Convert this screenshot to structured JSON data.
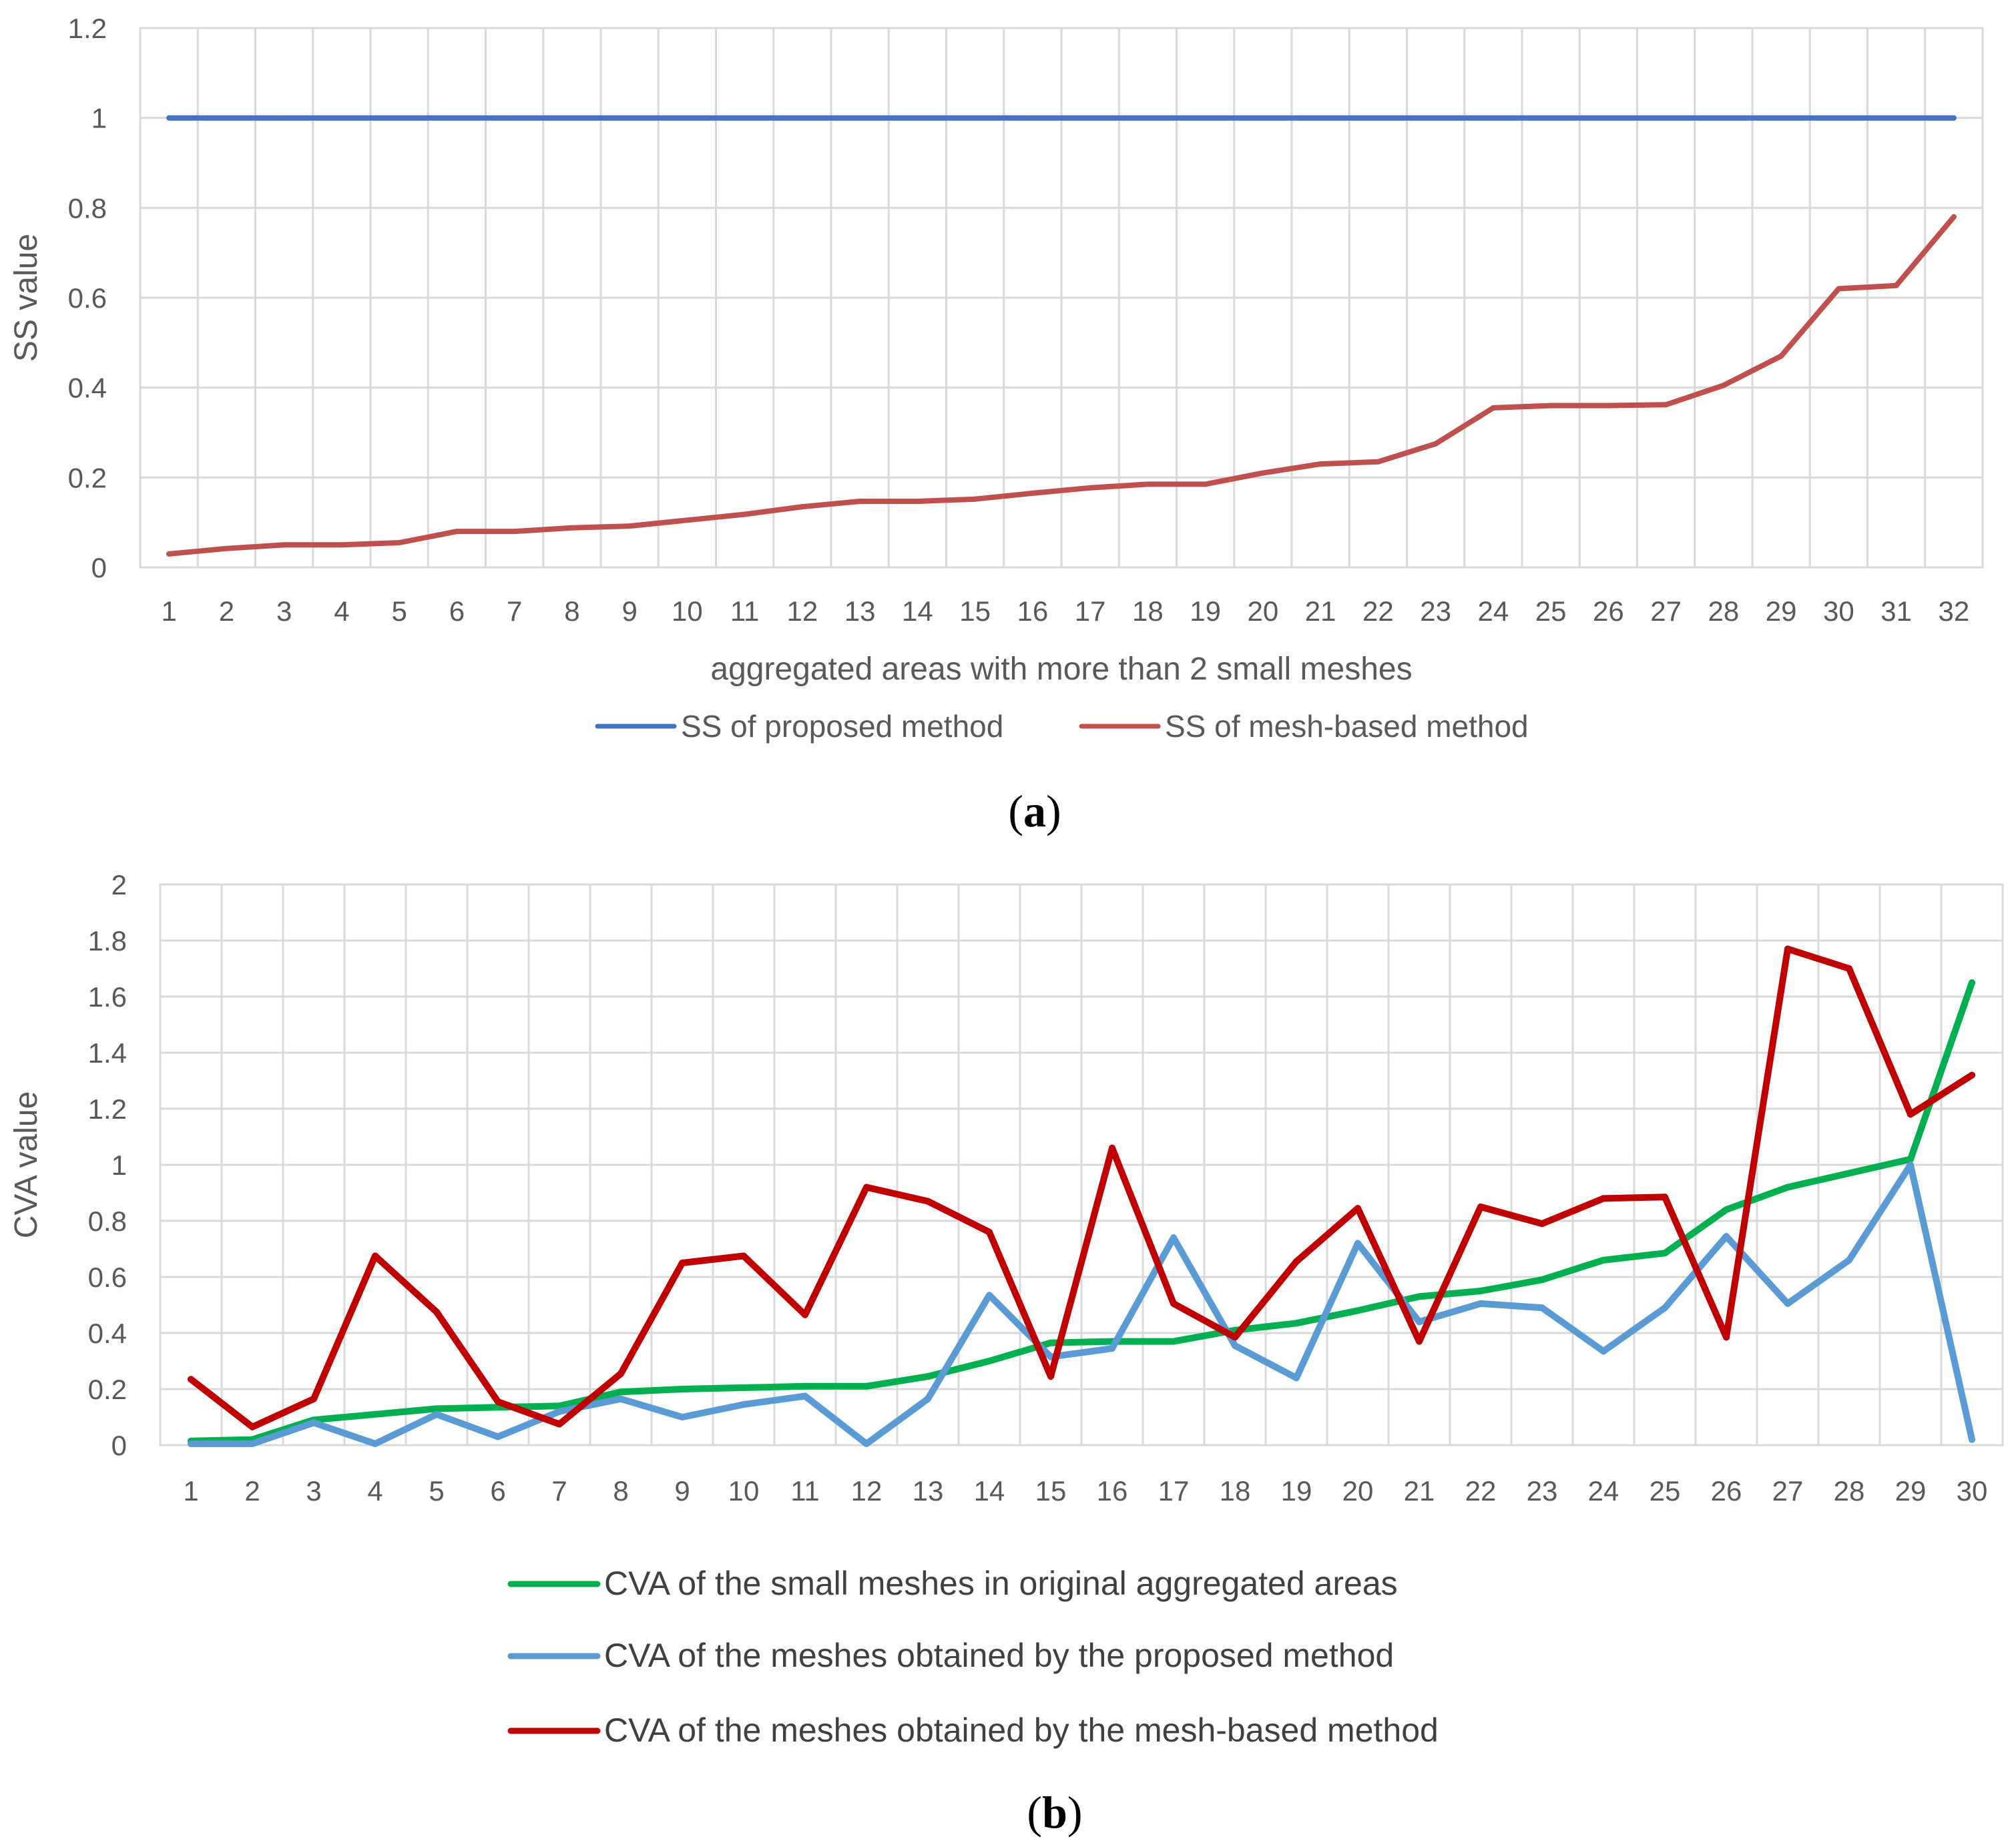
{
  "chart_data": [
    {
      "id": "a",
      "panel_label": "(a)",
      "panel_letter": "a",
      "type": "line",
      "xlabel": "aggregated areas with more than 2 small meshes",
      "ylabel": "SS value",
      "ylim": [
        0,
        1.2
      ],
      "y_ticks": [
        "0",
        "0.2",
        "0.4",
        "0.6",
        "0.8",
        "1",
        "1.2"
      ],
      "grid": true,
      "legend_position": "bottom",
      "x": [
        "1",
        "2",
        "3",
        "4",
        "5",
        "6",
        "7",
        "8",
        "9",
        "10",
        "11",
        "12",
        "13",
        "14",
        "15",
        "16",
        "17",
        "18",
        "19",
        "20",
        "21",
        "22",
        "23",
        "24",
        "25",
        "26",
        "27",
        "28",
        "29",
        "30",
        "31",
        "32"
      ],
      "series": [
        {
          "name": "SS of proposed method",
          "color": "#4472c4",
          "values": [
            1,
            1,
            1,
            1,
            1,
            1,
            1,
            1,
            1,
            1,
            1,
            1,
            1,
            1,
            1,
            1,
            1,
            1,
            1,
            1,
            1,
            1,
            1,
            1,
            1,
            1,
            1,
            1,
            1,
            1,
            1,
            1
          ]
        },
        {
          "name": "SS of mesh-based method",
          "color": "#c0504d",
          "values": [
            0.03,
            0.042,
            0.05,
            0.05,
            0.055,
            0.08,
            0.08,
            0.088,
            0.092,
            0.105,
            0.118,
            0.135,
            0.147,
            0.147,
            0.152,
            0.165,
            0.177,
            0.185,
            0.185,
            0.21,
            0.23,
            0.235,
            0.275,
            0.355,
            0.36,
            0.36,
            0.362,
            0.405,
            0.47,
            0.62,
            0.627,
            0.78
          ]
        }
      ]
    },
    {
      "id": "b",
      "panel_label": "(b)",
      "panel_letter": "b",
      "type": "line",
      "xlabel": "",
      "ylabel": "CVA value",
      "ylim": [
        0,
        2
      ],
      "y_ticks": [
        "0",
        "0.2",
        "0.4",
        "0.6",
        "0.8",
        "1",
        "1.2",
        "1.4",
        "1.6",
        "1.8",
        "2"
      ],
      "grid": true,
      "legend_position": "bottom",
      "x": [
        "1",
        "2",
        "3",
        "4",
        "5",
        "6",
        "7",
        "8",
        "9",
        "10",
        "11",
        "12",
        "13",
        "14",
        "15",
        "16",
        "17",
        "18",
        "19",
        "20",
        "21",
        "22",
        "23",
        "24",
        "25",
        "26",
        "27",
        "28",
        "29",
        "30"
      ],
      "series": [
        {
          "name": "CVA of the small meshes in original aggregated areas",
          "color": "#00b050",
          "values": [
            0.015,
            0.02,
            0.09,
            0.11,
            0.13,
            0.135,
            0.14,
            0.19,
            0.2,
            0.205,
            0.21,
            0.21,
            0.245,
            0.3,
            0.365,
            0.37,
            0.37,
            0.41,
            0.435,
            0.48,
            0.53,
            0.55,
            0.59,
            0.66,
            0.685,
            0.84,
            0.92,
            0.97,
            1.02,
            1.65
          ]
        },
        {
          "name": "CVA of the meshes obtained by the proposed method",
          "color": "#5b9bd5",
          "values": [
            0.005,
            0.005,
            0.08,
            0.005,
            0.11,
            0.03,
            0.12,
            0.165,
            0.1,
            0.145,
            0.175,
            0.005,
            0.165,
            0.535,
            0.315,
            0.345,
            0.74,
            0.355,
            0.24,
            0.72,
            0.44,
            0.505,
            0.49,
            0.335,
            0.49,
            0.745,
            0.505,
            0.66,
            1.0,
            0.02
          ]
        },
        {
          "name": "CVA of the meshes obtained by the mesh-based method",
          "color": "#c00000",
          "values": [
            0.235,
            0.065,
            0.165,
            0.675,
            0.475,
            0.155,
            0.075,
            0.255,
            0.65,
            0.675,
            0.465,
            0.92,
            0.87,
            0.76,
            0.245,
            1.06,
            0.505,
            0.385,
            0.655,
            0.845,
            0.37,
            0.85,
            0.79,
            0.88,
            0.885,
            0.385,
            1.77,
            1.7,
            1.18,
            1.32
          ]
        }
      ]
    }
  ]
}
